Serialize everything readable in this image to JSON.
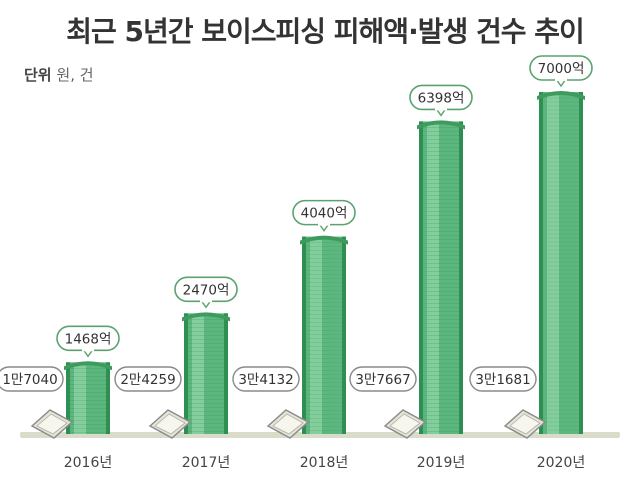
{
  "title": "최근 5년간 보이스피싱 피해액·발생 건수 추이",
  "unit_label": "단위",
  "unit_text": "원, 건",
  "colors": {
    "bar_body": "#5cb77e",
    "bar_light": "#8fd3a6",
    "bar_dark": "#2f8f52",
    "bar_top": "#3e9a5f",
    "bubble_border": "#5aa36f",
    "count_border": "#8a8a8a",
    "baseline": "#d8dcc8"
  },
  "chart_data": {
    "type": "bar",
    "title": "최근 5년간 보이스피싱 피해액·발생 건수 추이",
    "categories": [
      "2016년",
      "2017년",
      "2018년",
      "2019년",
      "2020년"
    ],
    "series": [
      {
        "name": "피해액",
        "values": [
          1468,
          2470,
          4040,
          6398,
          7000
        ],
        "labels": [
          "1468억",
          "2470억",
          "4040억",
          "6398억",
          "7000억"
        ]
      },
      {
        "name": "발생 건수",
        "values": [
          17040,
          24259,
          34132,
          37667,
          31681
        ],
        "labels": [
          "1만7040",
          "2만4259",
          "3만4132",
          "3만7667",
          "3만1681"
        ]
      }
    ],
    "ylim": [
      0,
      7000
    ],
    "grid": false
  }
}
